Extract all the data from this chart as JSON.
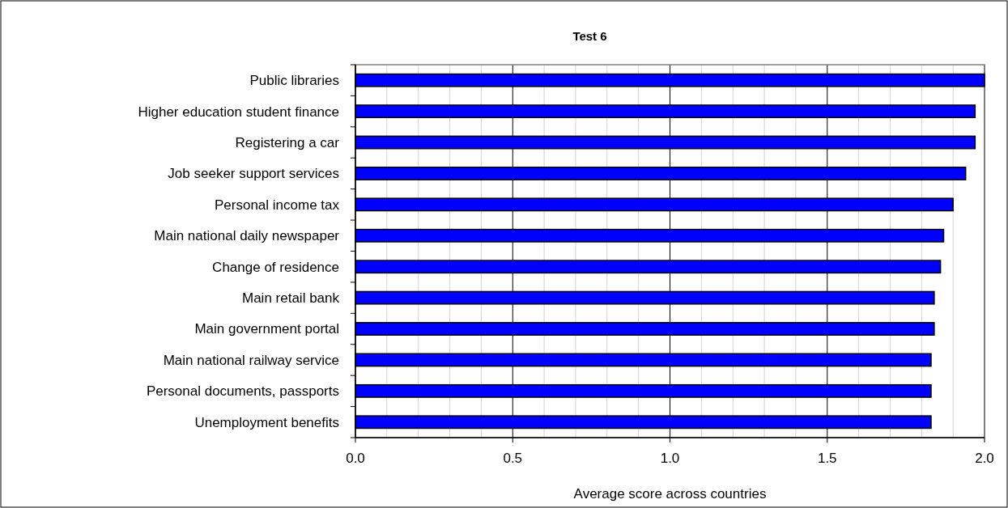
{
  "chart_data": {
    "type": "bar",
    "orientation": "horizontal",
    "title": "Test 6",
    "xlabel": "Average score across countries",
    "categories": [
      "Public libraries",
      "Higher education student finance",
      "Registering a car",
      "Job seeker support services",
      "Personal income tax",
      "Main national daily newspaper",
      "Change of residence",
      "Main retail bank",
      "Main government portal",
      "Main national railway service",
      "Personal documents, passports",
      "Unemployment benefits"
    ],
    "values": [
      2.0,
      1.97,
      1.97,
      1.94,
      1.9,
      1.87,
      1.86,
      1.84,
      1.84,
      1.83,
      1.83,
      1.83
    ],
    "color": "#0000ff",
    "xlim": [
      0,
      2
    ],
    "xticks": [
      {
        "value": 0,
        "label": "0.0"
      },
      {
        "value": 0.1,
        "label": null
      },
      {
        "value": 0.2,
        "label": null
      },
      {
        "value": 0.3,
        "label": null
      },
      {
        "value": 0.4,
        "label": null
      },
      {
        "value": 0.5,
        "label": "0.5"
      },
      {
        "value": 0.6,
        "label": null
      },
      {
        "value": 0.7,
        "label": null
      },
      {
        "value": 0.8,
        "label": null
      },
      {
        "value": 0.9,
        "label": null
      },
      {
        "value": 1,
        "label": "1.0"
      },
      {
        "value": 1.1,
        "label": null
      },
      {
        "value": 1.2,
        "label": null
      },
      {
        "value": 1.3,
        "label": null
      },
      {
        "value": 1.4,
        "label": null
      },
      {
        "value": 1.5,
        "label": "1.5"
      },
      {
        "value": 1.6,
        "label": null
      },
      {
        "value": 1.7,
        "label": null
      },
      {
        "value": 1.8,
        "label": null
      },
      {
        "value": 1.9,
        "label": null
      },
      {
        "value": 2,
        "label": "2.0"
      }
    ],
    "grid": true
  }
}
